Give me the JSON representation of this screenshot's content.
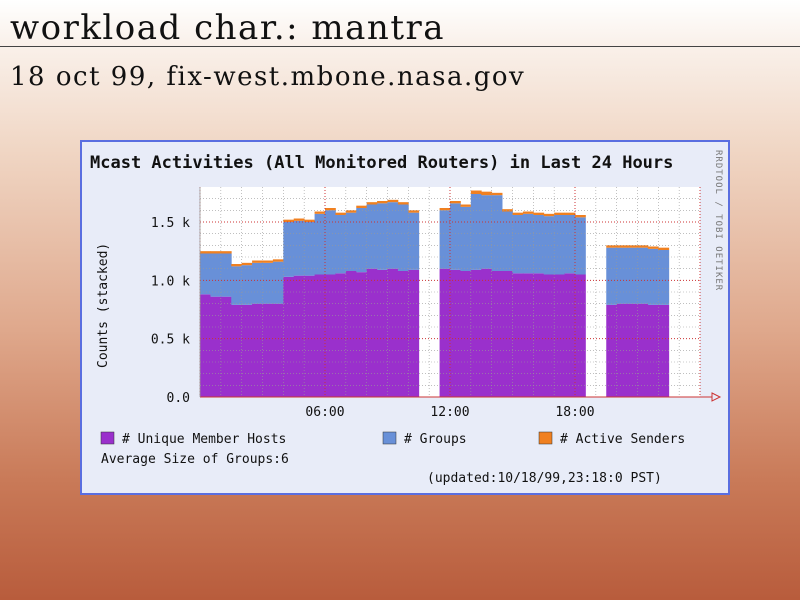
{
  "slide": {
    "title": "workload char.: mantra",
    "subtitle": "18 oct 99, fix-west.mbone.nasa.gov"
  },
  "chart_data": {
    "type": "area",
    "title": "Mcast Activities (All Monitored Routers) in Last 24 Hours",
    "ylabel": "Counts (stacked)",
    "watermark": "RRDTOOL / TOBI OETIKER",
    "ylim": [
      0,
      1.8
    ],
    "yticks": [
      "0.0",
      "0.5 k",
      "1.0 k",
      "1.5 k"
    ],
    "xticks": [
      "06:00",
      "12:00",
      "18:00"
    ],
    "x": [
      0.0,
      0.5,
      1.0,
      1.5,
      2.0,
      2.5,
      3.0,
      3.5,
      4.0,
      4.5,
      5.0,
      5.5,
      6.0,
      6.5,
      7.0,
      7.5,
      8.0,
      8.5,
      9.0,
      9.5,
      10.0,
      10.5,
      11.0,
      11.5,
      12.0,
      12.5,
      13.0,
      13.5,
      14.0,
      14.5,
      15.0,
      15.5,
      16.0,
      16.5,
      17.0,
      17.5,
      18.0,
      18.5,
      19.0,
      19.5,
      20.0,
      20.5,
      21.0,
      21.5,
      22.0,
      22.5,
      23.0,
      23.5
    ],
    "series": [
      {
        "name": "# Unique Member Hosts",
        "color": "#9a30cc",
        "values": [
          0.88,
          0.86,
          0.86,
          0.79,
          0.79,
          0.8,
          0.8,
          0.8,
          1.03,
          1.04,
          1.04,
          1.05,
          1.05,
          1.06,
          1.08,
          1.07,
          1.1,
          1.09,
          1.1,
          1.08,
          1.09,
          null,
          null,
          1.1,
          1.09,
          1.08,
          1.09,
          1.1,
          1.08,
          1.08,
          1.06,
          1.06,
          1.06,
          1.05,
          1.05,
          1.06,
          1.05,
          null,
          null,
          0.79,
          0.8,
          0.8,
          0.8,
          0.79,
          0.79,
          null,
          null,
          null
        ]
      },
      {
        "name": "# Groups",
        "color": "#6890d8",
        "values": [
          0.35,
          0.37,
          0.37,
          0.33,
          0.34,
          0.35,
          0.35,
          0.36,
          0.47,
          0.47,
          0.46,
          0.52,
          0.55,
          0.5,
          0.5,
          0.55,
          0.55,
          0.57,
          0.57,
          0.57,
          0.49,
          null,
          null,
          0.5,
          0.57,
          0.55,
          0.65,
          0.63,
          0.65,
          0.51,
          0.5,
          0.51,
          0.5,
          0.5,
          0.51,
          0.5,
          0.49,
          null,
          null,
          0.49,
          0.48,
          0.48,
          0.48,
          0.48,
          0.47,
          null,
          null,
          null
        ]
      },
      {
        "name": "# Active Senders",
        "color": "#f08020",
        "values": [
          0.02,
          0.02,
          0.02,
          0.02,
          0.02,
          0.02,
          0.02,
          0.02,
          0.02,
          0.02,
          0.02,
          0.02,
          0.02,
          0.02,
          0.02,
          0.02,
          0.02,
          0.02,
          0.02,
          0.02,
          0.02,
          null,
          null,
          0.02,
          0.02,
          0.02,
          0.03,
          0.03,
          0.02,
          0.02,
          0.02,
          0.02,
          0.02,
          0.02,
          0.02,
          0.02,
          0.02,
          null,
          null,
          0.02,
          0.02,
          0.02,
          0.02,
          0.02,
          0.02,
          null,
          null,
          null
        ]
      }
    ],
    "average_label": "Average Size of Groups:6",
    "updated": "(updated:10/18/99,23:18:0 PST)"
  }
}
